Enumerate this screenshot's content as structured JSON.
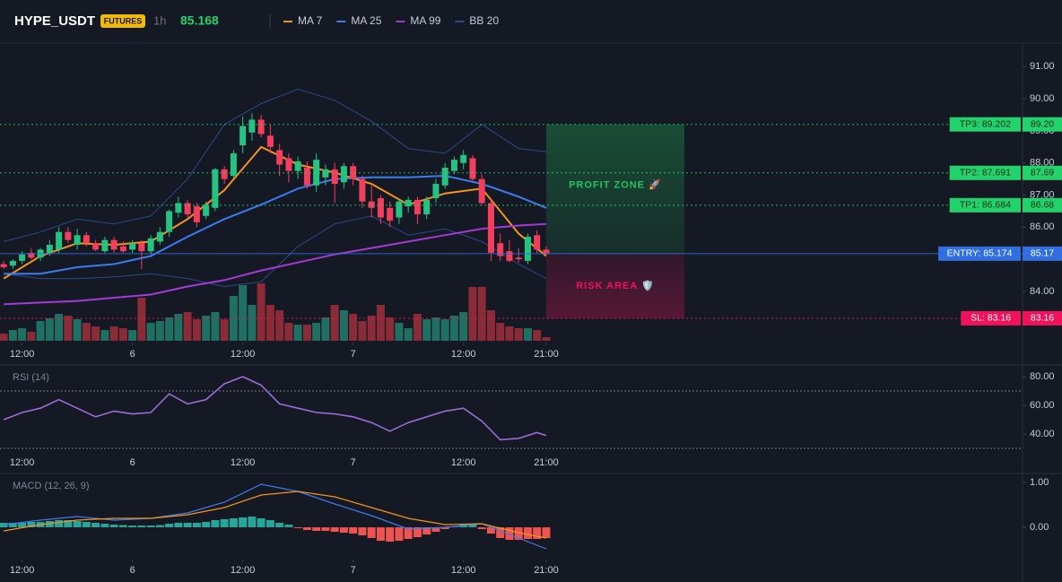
{
  "header": {
    "symbol": "HYPE_USDT",
    "badge": "FUTURES",
    "interval": "1h",
    "price": 85.168
  },
  "chart_data": [
    {
      "type": "candlestick",
      "xlim": [
        -0.4,
        110.8
      ],
      "xticks": [
        {
          "value": 2,
          "label": "12:00"
        },
        {
          "value": 14,
          "label": "6"
        },
        {
          "value": 26,
          "label": "12:00"
        },
        {
          "value": 38,
          "label": "7"
        },
        {
          "value": 50,
          "label": "12:00"
        },
        {
          "value": 59,
          "label": "21:00"
        }
      ],
      "ylim": [
        82.46,
        91.68
      ],
      "yticks": [
        {
          "value": 84,
          "label": "84.00"
        },
        {
          "value": 86,
          "label": "86.00"
        },
        {
          "value": 87,
          "label": "87.00"
        },
        {
          "value": 88,
          "label": "88.00"
        },
        {
          "value": 89,
          "label": "89.00"
        },
        {
          "value": 90,
          "label": "90.00"
        },
        {
          "value": 91,
          "label": "91.00"
        }
      ],
      "grid": false,
      "up_color": "#26c281",
      "down_color": "#f23f5e",
      "volume_up_color": "#1f6f63",
      "volume_down_color": "#8a2b38",
      "volume_lim": [
        0,
        100
      ],
      "x": [
        0,
        1,
        2,
        3,
        4,
        5,
        6,
        7,
        8,
        9,
        10,
        11,
        12,
        13,
        14,
        15,
        16,
        17,
        18,
        19,
        20,
        21,
        22,
        23,
        24,
        25,
        26,
        27,
        28,
        29,
        30,
        31,
        32,
        33,
        34,
        35,
        36,
        37,
        38,
        39,
        40,
        41,
        42,
        43,
        44,
        45,
        46,
        47,
        48,
        49,
        50,
        51,
        52,
        53,
        54,
        55,
        56,
        57,
        58,
        59
      ],
      "open": [
        84.85,
        84.8,
        84.95,
        85.2,
        85.05,
        85.2,
        85.3,
        85.85,
        85.45,
        85.75,
        85.5,
        85.25,
        85.6,
        85.4,
        85.3,
        85.5,
        85.25,
        85.55,
        85.85,
        86.45,
        86.75,
        86.65,
        86.35,
        86.6,
        87.8,
        87.6,
        88.55,
        88.95,
        89.35,
        88.85,
        88.4,
        88.15,
        87.75,
        87.85,
        87.3,
        87.55,
        87.8,
        87.4,
        87.9,
        87.5,
        86.8,
        86.9,
        86.6,
        86.3,
        86.65,
        86.85,
        86.4,
        86.9,
        87.3,
        87.75,
        88.0,
        88.15,
        87.5,
        86.75,
        85.5,
        85.25,
        85.05,
        84.95,
        85.75,
        85.3
      ],
      "high": [
        84.95,
        85.0,
        85.25,
        85.35,
        85.35,
        85.6,
        86.0,
        86.0,
        85.95,
        85.85,
        85.6,
        85.7,
        85.7,
        85.55,
        85.6,
        85.6,
        85.75,
        86.0,
        86.55,
        86.95,
        86.85,
        86.75,
        86.8,
        87.85,
        87.9,
        88.4,
        89.45,
        89.55,
        89.5,
        89.2,
        88.6,
        88.3,
        88.2,
        88.05,
        88.3,
        87.95,
        88.0,
        88.0,
        88.0,
        87.6,
        87.3,
        87.0,
        86.8,
        86.9,
        86.95,
        86.95,
        86.95,
        87.5,
        88.0,
        88.2,
        88.4,
        88.25,
        87.65,
        86.9,
        85.8,
        85.6,
        85.35,
        85.8,
        85.9,
        85.4
      ],
      "low": [
        84.7,
        84.7,
        84.85,
        85.0,
        84.95,
        85.1,
        85.2,
        85.5,
        85.3,
        85.4,
        85.25,
        85.2,
        85.2,
        85.2,
        85.2,
        84.7,
        85.15,
        85.45,
        85.7,
        86.3,
        86.3,
        86.0,
        86.25,
        86.5,
        87.35,
        87.5,
        88.3,
        88.7,
        88.8,
        88.3,
        87.6,
        87.4,
        87.5,
        87.2,
        87.1,
        87.3,
        86.75,
        87.2,
        87.3,
        86.6,
        86.3,
        86.1,
        86.0,
        86.1,
        86.45,
        86.1,
        86.25,
        86.75,
        87.2,
        87.65,
        87.8,
        87.45,
        86.7,
        84.95,
        84.95,
        84.9,
        84.9,
        84.85,
        85.2,
        85.15
      ],
      "close": [
        84.75,
        84.95,
        85.15,
        85.05,
        85.3,
        85.45,
        85.85,
        85.6,
        85.75,
        85.5,
        85.3,
        85.6,
        85.3,
        85.25,
        85.5,
        85.25,
        85.65,
        85.85,
        86.5,
        86.75,
        86.4,
        86.15,
        86.7,
        87.8,
        87.5,
        88.3,
        89.15,
        89.35,
        88.9,
        88.5,
        87.95,
        87.75,
        88.05,
        87.3,
        88.1,
        87.8,
        87.35,
        87.9,
        87.5,
        86.8,
        86.6,
        86.3,
        86.2,
        86.8,
        86.85,
        86.4,
        86.85,
        87.35,
        87.85,
        88.1,
        88.25,
        87.5,
        86.75,
        85.2,
        85.1,
        84.95,
        85.0,
        85.7,
        85.3,
        85.168
      ],
      "volume": [
        8,
        12,
        14,
        10,
        22,
        25,
        30,
        28,
        24,
        20,
        16,
        12,
        16,
        14,
        12,
        48,
        20,
        22,
        26,
        30,
        32,
        24,
        28,
        32,
        24,
        50,
        62,
        40,
        64,
        40,
        34,
        20,
        18,
        18,
        20,
        26,
        40,
        34,
        30,
        22,
        28,
        40,
        26,
        20,
        14,
        30,
        24,
        26,
        24,
        28,
        32,
        60,
        60,
        34,
        20,
        16,
        14,
        14,
        12,
        4
      ],
      "series": [
        {
          "name": "MA 7",
          "color": "#f7931a",
          "x": [
            0,
            4,
            8,
            12,
            16,
            20,
            24,
            28,
            32,
            36,
            40,
            44,
            48,
            52,
            56,
            59
          ],
          "values": [
            84.4,
            85.1,
            85.5,
            85.45,
            85.55,
            86.25,
            87.15,
            88.5,
            87.95,
            87.7,
            87.35,
            86.7,
            87.05,
            87.2,
            85.8,
            85.1
          ]
        },
        {
          "name": "MA 25",
          "color": "#3b7cf0",
          "x": [
            0,
            4,
            8,
            12,
            16,
            20,
            24,
            28,
            32,
            36,
            40,
            44,
            48,
            52,
            56,
            59
          ],
          "values": [
            84.55,
            84.55,
            84.75,
            84.85,
            85.1,
            85.7,
            86.25,
            86.7,
            87.2,
            87.5,
            87.55,
            87.55,
            87.6,
            87.35,
            86.95,
            86.6
          ]
        },
        {
          "name": "MA 99",
          "color": "#a23bd6",
          "x": [
            0,
            4,
            8,
            12,
            16,
            20,
            24,
            28,
            32,
            36,
            40,
            44,
            48,
            52,
            56,
            59
          ],
          "values": [
            83.6,
            83.65,
            83.7,
            83.8,
            83.9,
            84.15,
            84.35,
            84.65,
            84.9,
            85.15,
            85.35,
            85.55,
            85.75,
            85.95,
            86.05,
            86.1
          ]
        },
        {
          "name": "BB 20",
          "color": "#2b4a8c",
          "x": [
            0,
            4,
            8,
            12,
            16,
            20,
            24,
            28,
            32,
            36,
            40,
            44,
            48,
            52,
            56,
            59
          ],
          "upper": [
            85.55,
            85.85,
            86.25,
            86.1,
            86.35,
            87.5,
            89.2,
            89.85,
            90.3,
            89.95,
            89.3,
            88.45,
            88.3,
            89.2,
            88.45,
            88.35
          ],
          "lower": [
            84.55,
            84.4,
            84.4,
            84.45,
            84.55,
            84.4,
            84.15,
            84.3,
            85.4,
            86.1,
            86.35,
            85.75,
            85.95,
            85.55,
            84.85,
            84.4
          ]
        }
      ],
      "levels": [
        {
          "label": "TP3: 89.202",
          "value": 89.202,
          "axis_label": "89.20",
          "color": "#22d36b",
          "style": "dotted"
        },
        {
          "label": "TP2: 87.691",
          "value": 87.691,
          "axis_label": "87.69",
          "color": "#22d36b",
          "style": "dotted"
        },
        {
          "label": "TP1: 86.684",
          "value": 86.684,
          "axis_label": "86.68",
          "color": "#22d36b",
          "style": "dotted"
        },
        {
          "label": "ENTRY: 85.174",
          "value": 85.174,
          "axis_label": "85.17",
          "color": "#2f6fe0",
          "style": "solid"
        },
        {
          "label": "SL: 83.16",
          "value": 83.16,
          "axis_label": "83.16",
          "color": "#f0135c",
          "style": "dotted"
        }
      ],
      "zones": [
        {
          "label": "PROFIT ZONE 🚀",
          "color": "#22c55e"
        },
        {
          "label": "RISK AREA 🛡️",
          "color": "#f0135c"
        }
      ]
    },
    {
      "type": "line",
      "title": "RSI (14)",
      "ylim": [
        25,
        87.5
      ],
      "yticks": [
        {
          "value": 80,
          "label": "80.00"
        },
        {
          "value": 60,
          "label": "60.00"
        },
        {
          "value": 40,
          "label": "40.00"
        }
      ],
      "bands": [
        70,
        30
      ],
      "x": [
        0,
        2,
        4,
        6,
        8,
        10,
        12,
        14,
        16,
        18,
        20,
        22,
        24,
        26,
        28,
        30,
        32,
        34,
        36,
        38,
        40,
        42,
        44,
        46,
        48,
        50,
        52,
        54,
        56,
        58,
        59
      ],
      "series": [
        {
          "color": "#9b6cd8",
          "values": [
            50,
            55,
            58,
            64,
            58,
            52,
            56,
            54,
            55,
            68,
            61,
            64,
            75,
            80,
            74,
            61,
            58,
            55,
            54,
            52,
            48,
            42,
            48,
            52,
            56,
            58,
            49,
            36,
            37,
            41,
            39
          ]
        }
      ]
    },
    {
      "type": "macd",
      "title": "MACD (12, 26, 9)",
      "ylim": [
        -0.68,
        1.2
      ],
      "yticks": [
        {
          "value": 1,
          "label": "1.00"
        },
        {
          "value": 0,
          "label": "0.00"
        }
      ],
      "up_color": "#26a69a",
      "down_color": "#ef5350",
      "x": [
        0,
        1,
        2,
        3,
        4,
        5,
        6,
        7,
        8,
        9,
        10,
        11,
        12,
        13,
        14,
        15,
        16,
        17,
        18,
        19,
        20,
        21,
        22,
        23,
        24,
        25,
        26,
        27,
        28,
        29,
        30,
        31,
        32,
        33,
        34,
        35,
        36,
        37,
        38,
        39,
        40,
        41,
        42,
        43,
        44,
        45,
        46,
        47,
        48,
        49,
        50,
        51,
        52,
        53,
        54,
        55,
        56,
        57,
        58,
        59
      ],
      "histogram": [
        0.1,
        0.1,
        0.1,
        0.12,
        0.12,
        0.14,
        0.16,
        0.16,
        0.14,
        0.12,
        0.1,
        0.08,
        0.06,
        0.05,
        0.04,
        0.04,
        0.04,
        0.05,
        0.08,
        0.1,
        0.1,
        0.1,
        0.12,
        0.16,
        0.18,
        0.2,
        0.22,
        0.24,
        0.2,
        0.16,
        0.1,
        0.06,
        -0.02,
        -0.06,
        -0.08,
        -0.08,
        -0.1,
        -0.12,
        -0.14,
        -0.18,
        -0.24,
        -0.3,
        -0.32,
        -0.3,
        -0.26,
        -0.22,
        -0.16,
        -0.1,
        -0.04,
        0.02,
        0.06,
        0.06,
        -0.04,
        -0.14,
        -0.24,
        -0.28,
        -0.28,
        -0.26,
        -0.26,
        -0.24
      ],
      "series": [
        {
          "color": "#3b7cf0",
          "x": [
            0,
            4,
            8,
            12,
            16,
            20,
            24,
            28,
            32,
            36,
            40,
            44,
            48,
            52,
            56,
            59
          ],
          "values": [
            0.06,
            0.16,
            0.24,
            0.16,
            0.2,
            0.32,
            0.56,
            0.96,
            0.8,
            0.52,
            0.26,
            -0.04,
            0,
            0.08,
            -0.24,
            -0.48
          ]
        },
        {
          "color": "#f7931a",
          "x": [
            0,
            4,
            8,
            12,
            16,
            20,
            24,
            28,
            32,
            36,
            40,
            44,
            48,
            52,
            56,
            59
          ],
          "values": [
            -0.08,
            0.06,
            0.16,
            0.2,
            0.2,
            0.28,
            0.44,
            0.72,
            0.8,
            0.68,
            0.44,
            0.2,
            0.06,
            0.08,
            -0.12,
            -0.24
          ]
        }
      ]
    }
  ]
}
